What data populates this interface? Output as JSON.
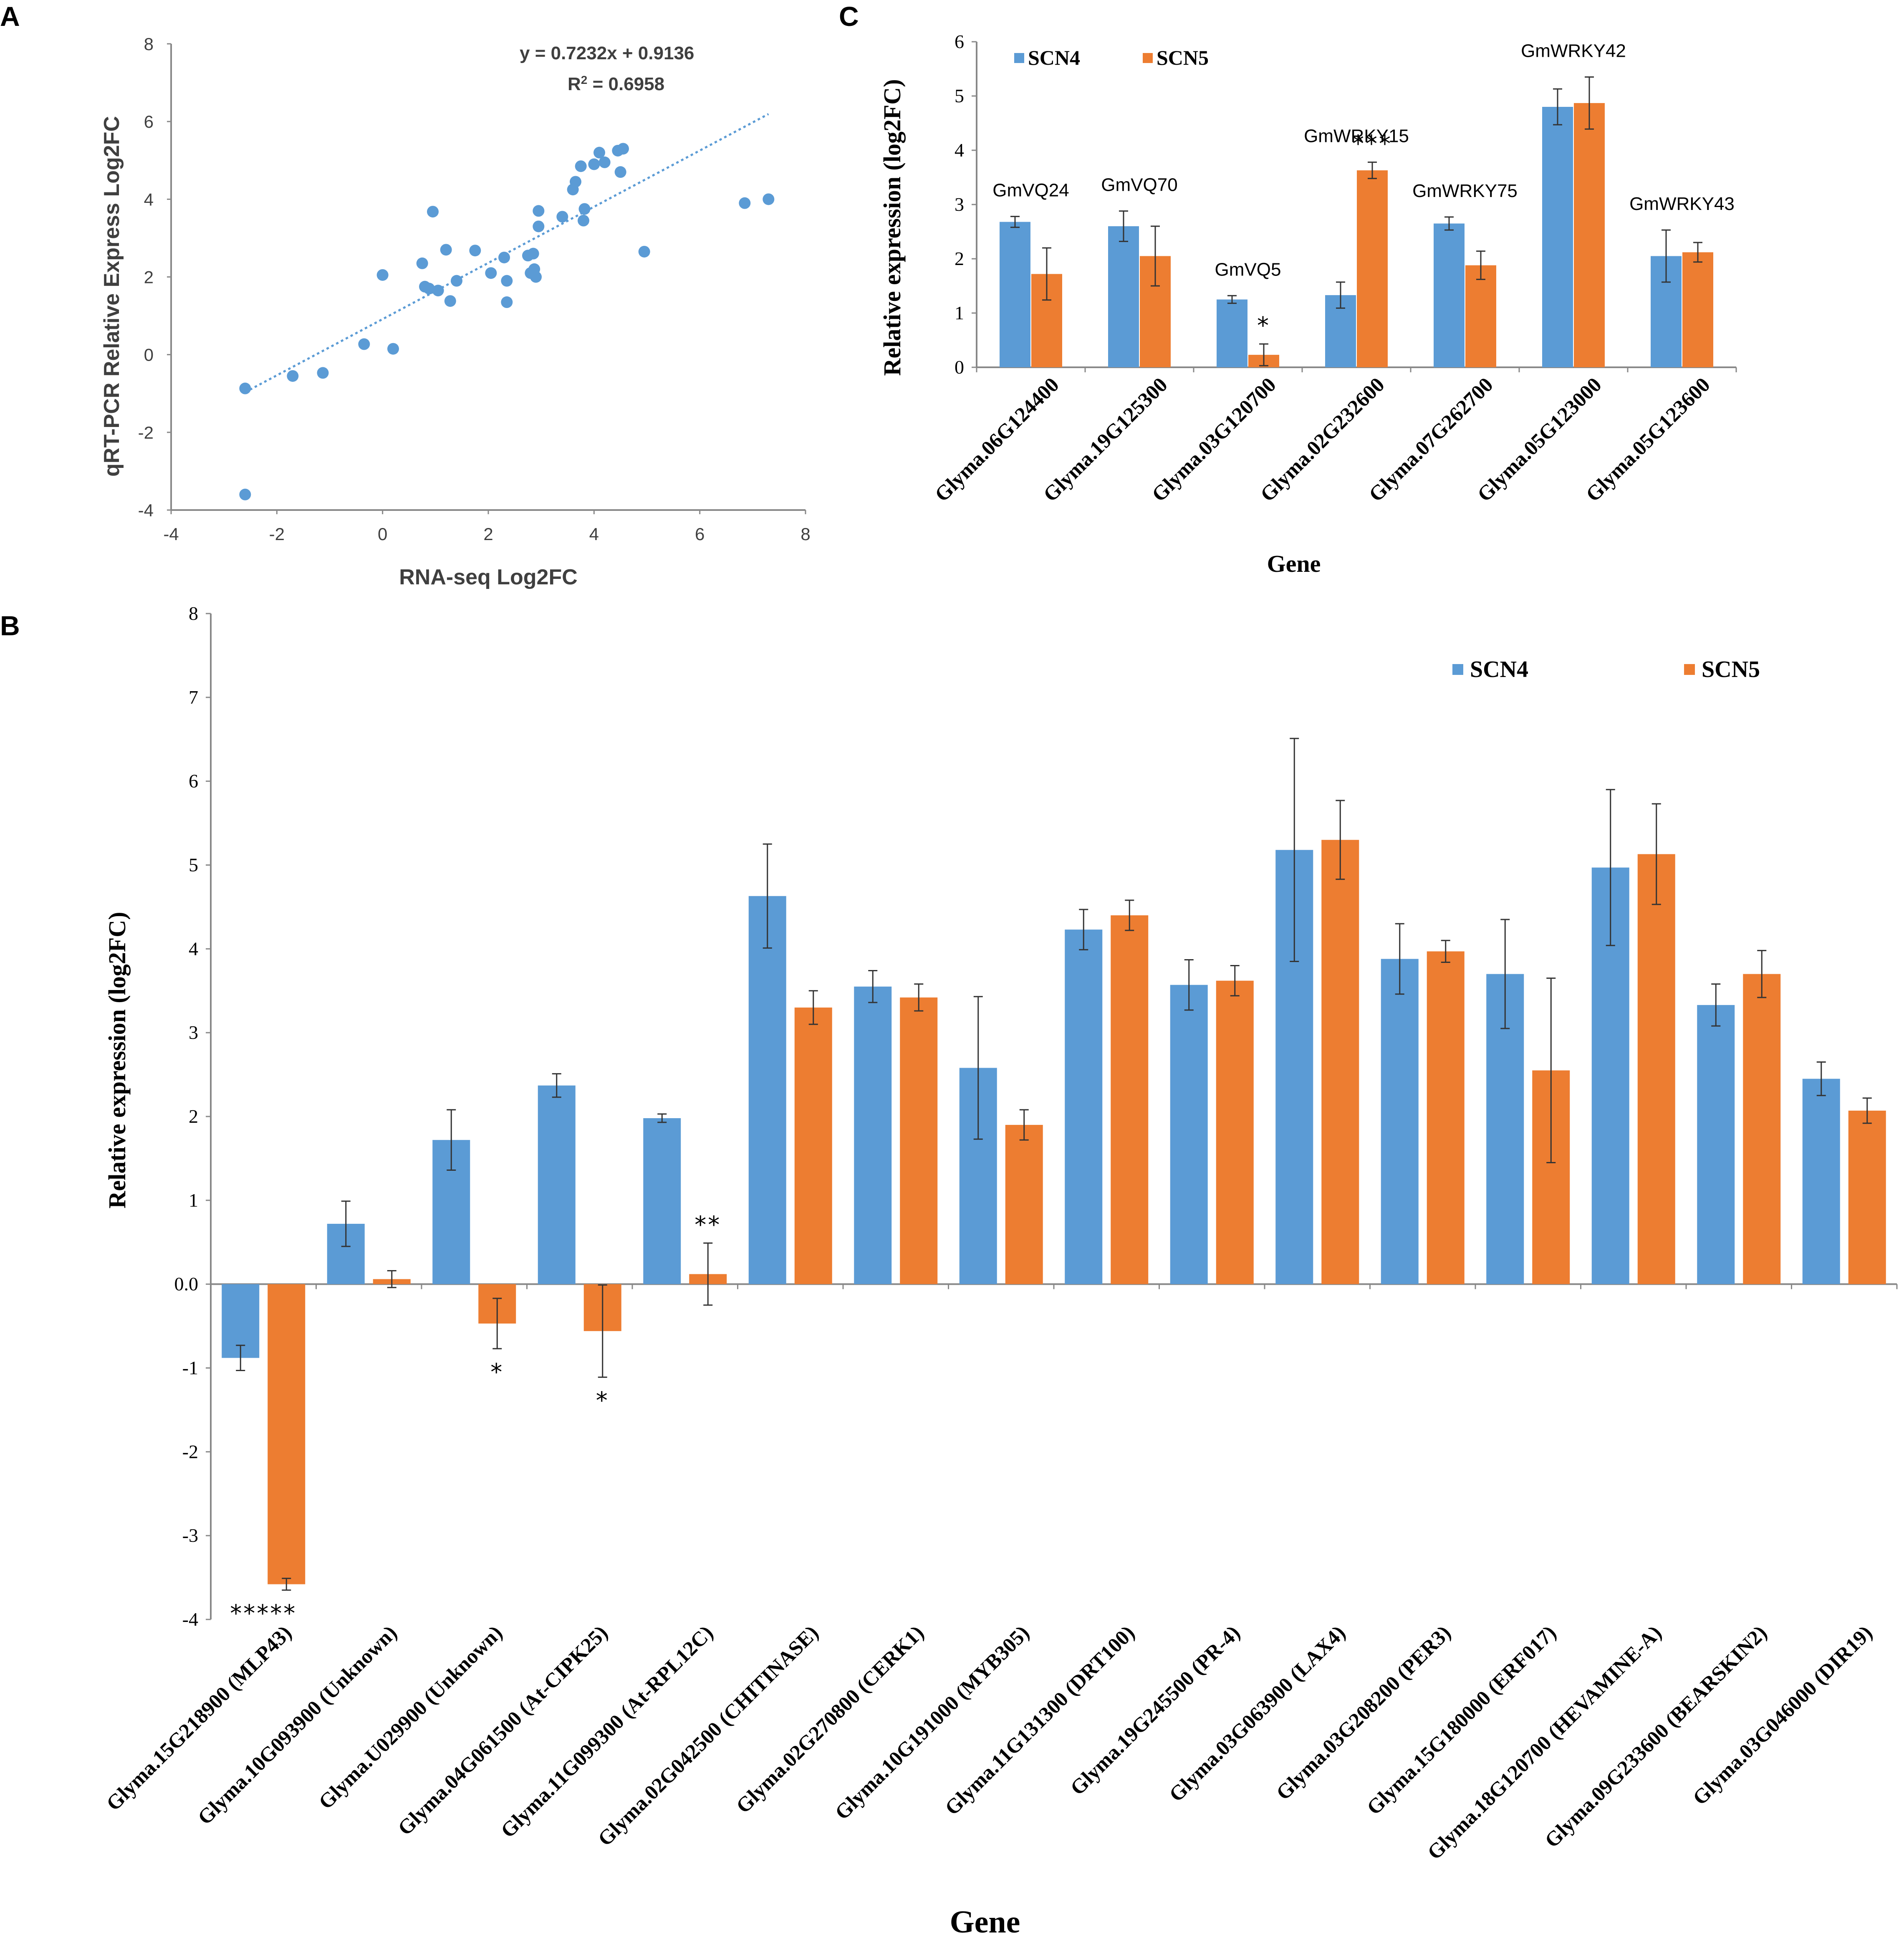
{
  "panels": {
    "a": "A",
    "b": "B",
    "c": "C"
  },
  "colors": {
    "scn4": "#5b9bd5",
    "scn5": "#ed7d31",
    "scatter": "#5b9bd5",
    "axis": "#888888",
    "errbar": "#333333"
  },
  "chart_data": [
    {
      "id": "A",
      "type": "scatter",
      "title": "",
      "xlabel": "RNA-seq Log2FC",
      "ylabel": "qRT-PCR Relative Express  Log2FC",
      "xlim": [
        -4,
        8
      ],
      "ylim": [
        -4,
        8
      ],
      "xticks": [
        -4,
        -2,
        0,
        2,
        4,
        6,
        8
      ],
      "yticks": [
        -4,
        -2,
        0,
        2,
        4,
        6,
        8
      ],
      "equation": "y = 0.7232x + 0.9136",
      "r2_label": "R",
      "r2_sup": "2",
      "r2_value": " = 0.6958",
      "trendline": {
        "slope": 0.7232,
        "intercept": 0.9136,
        "x_range": [
          -2.6,
          7.3
        ]
      },
      "points": [
        [
          -2.6,
          -0.87
        ],
        [
          -2.6,
          -3.6
        ],
        [
          -1.7,
          -0.55
        ],
        [
          -1.13,
          -0.47
        ],
        [
          -0.35,
          0.27
        ],
        [
          0.0,
          2.05
        ],
        [
          0.2,
          0.15
        ],
        [
          0.75,
          2.35
        ],
        [
          0.8,
          1.75
        ],
        [
          0.88,
          1.7
        ],
        [
          0.95,
          3.68
        ],
        [
          1.05,
          1.65
        ],
        [
          1.2,
          2.7
        ],
        [
          1.28,
          1.38
        ],
        [
          1.4,
          1.9
        ],
        [
          1.75,
          2.68
        ],
        [
          2.05,
          2.1
        ],
        [
          2.3,
          2.5
        ],
        [
          2.35,
          1.9
        ],
        [
          2.35,
          1.35
        ],
        [
          2.75,
          2.55
        ],
        [
          2.8,
          2.1
        ],
        [
          2.85,
          2.6
        ],
        [
          2.87,
          2.2
        ],
        [
          2.9,
          2.0
        ],
        [
          2.95,
          3.7
        ],
        [
          2.95,
          3.3
        ],
        [
          3.4,
          3.55
        ],
        [
          3.6,
          4.25
        ],
        [
          3.65,
          4.45
        ],
        [
          3.75,
          4.85
        ],
        [
          3.8,
          3.45
        ],
        [
          3.82,
          3.75
        ],
        [
          4.0,
          4.9
        ],
        [
          4.1,
          5.2
        ],
        [
          4.2,
          4.95
        ],
        [
          4.45,
          5.25
        ],
        [
          4.5,
          4.7
        ],
        [
          4.55,
          5.3
        ],
        [
          4.95,
          2.65
        ],
        [
          6.85,
          3.9
        ],
        [
          7.3,
          4.0
        ]
      ]
    },
    {
      "id": "C",
      "type": "bar",
      "xlabel": "Gene",
      "ylabel": "Relative expression (log2FC)",
      "ylim": [
        0,
        6
      ],
      "yticks": [
        0,
        1,
        2,
        3,
        4,
        5,
        6
      ],
      "legend": [
        "SCN4",
        "SCN5"
      ],
      "categories": [
        "Glyma.06G124400",
        "Glyma.19G125300",
        "Glyma.03G120700",
        "Glyma.02G232600",
        "Glyma.07G262700",
        "Glyma.05G123000",
        "Glyma.05G123600"
      ],
      "gene_labels": [
        "GmVQ24",
        "GmVQ70",
        "GmVQ5",
        "GmWRKY15",
        "GmWRKY75",
        "GmWRKY42",
        "GmWRKY43"
      ],
      "series": [
        {
          "name": "SCN4",
          "values": [
            2.68,
            2.6,
            1.25,
            1.33,
            2.65,
            4.8,
            2.05
          ],
          "errors": [
            0.1,
            0.28,
            0.07,
            0.24,
            0.12,
            0.33,
            0.48
          ]
        },
        {
          "name": "SCN5",
          "values": [
            1.72,
            2.05,
            0.23,
            3.63,
            1.88,
            4.87,
            2.12
          ],
          "errors": [
            0.48,
            0.55,
            0.2,
            0.15,
            0.26,
            0.48,
            0.18
          ]
        }
      ],
      "significance": [
        "",
        "",
        "*",
        "***",
        "",
        "",
        ""
      ]
    },
    {
      "id": "B",
      "type": "bar",
      "xlabel": "Gene",
      "ylabel": "Relative expression (log2FC)",
      "ylim": [
        -4,
        8
      ],
      "yticks": [
        -4,
        -3,
        -2,
        -1,
        0,
        1,
        2,
        3,
        4,
        5,
        6,
        7,
        8
      ],
      "legend": [
        "SCN4",
        "SCN5"
      ],
      "categories": [
        "Glyma.15G218900 (MLP43)",
        "Glyma.10G093900 (Unknown)",
        "Glyma.U029900 (Unknown)",
        "Glyma.04G061500 (At-CIPK25)",
        "Glyma.11G099300 (At-RPL12C)",
        "Glyma.02G042500 (CHITINASE)",
        "Glyma.02G270800 (CERK1)",
        "Glyma.10G191000 (MYB305)",
        "Glyma.11G131300 (DRT100)",
        "Glyma.19G245500 (PR-4)",
        "Glyma.03G063900 (LAX4)",
        "Glyma.03G208200 (PER3)",
        "Glyma.15G180000 (ERF017)",
        "Glyma.18G120700 (HEVAMINE-A)",
        "Glyma.09G233600 (BEARSKIN2)",
        "Glyma.03G046000 (DIR19)"
      ],
      "series": [
        {
          "name": "SCN4",
          "values": [
            -0.88,
            0.72,
            1.72,
            2.37,
            1.98,
            4.63,
            3.55,
            2.58,
            4.23,
            3.57,
            5.18,
            3.88,
            3.7,
            4.97,
            3.33,
            2.45
          ],
          "errors": [
            0.15,
            0.27,
            0.36,
            0.14,
            0.05,
            0.62,
            0.19,
            0.85,
            0.24,
            0.3,
            1.33,
            0.42,
            0.65,
            0.93,
            0.25,
            0.2
          ]
        },
        {
          "name": "SCN5",
          "values": [
            -3.58,
            0.06,
            -0.47,
            -0.56,
            0.12,
            3.3,
            3.42,
            1.9,
            4.4,
            3.62,
            5.3,
            3.97,
            2.55,
            5.13,
            3.7,
            2.07
          ],
          "errors": [
            0.07,
            0.1,
            0.3,
            0.55,
            0.37,
            0.2,
            0.16,
            0.18,
            0.18,
            0.18,
            0.47,
            0.13,
            1.1,
            0.6,
            0.28,
            0.15
          ]
        }
      ],
      "significance": [
        "*****",
        "",
        "*",
        "*",
        "**",
        "",
        "",
        "",
        "",
        "",
        "",
        "",
        "",
        "",
        "",
        ""
      ]
    }
  ]
}
